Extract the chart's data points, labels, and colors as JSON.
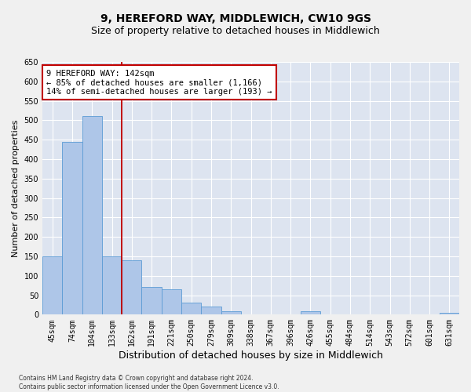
{
  "title1": "9, HEREFORD WAY, MIDDLEWICH, CW10 9GS",
  "title2": "Size of property relative to detached houses in Middlewich",
  "xlabel": "Distribution of detached houses by size in Middlewich",
  "ylabel": "Number of detached properties",
  "footnote": "Contains HM Land Registry data © Crown copyright and database right 2024.\nContains public sector information licensed under the Open Government Licence v3.0.",
  "categories": [
    "45sqm",
    "74sqm",
    "104sqm",
    "133sqm",
    "162sqm",
    "191sqm",
    "221sqm",
    "250sqm",
    "279sqm",
    "309sqm",
    "338sqm",
    "367sqm",
    "396sqm",
    "426sqm",
    "455sqm",
    "484sqm",
    "514sqm",
    "543sqm",
    "572sqm",
    "601sqm",
    "631sqm"
  ],
  "values": [
    150,
    445,
    510,
    150,
    140,
    72,
    65,
    30,
    20,
    8,
    0,
    0,
    0,
    8,
    0,
    0,
    0,
    0,
    0,
    0,
    5
  ],
  "bar_color": "#aec6e8",
  "bar_edge_color": "#5b9bd5",
  "vline_x_index": 3,
  "vline_color": "#c00000",
  "annotation_text": "9 HEREFORD WAY: 142sqm\n← 85% of detached houses are smaller (1,166)\n14% of semi-detached houses are larger (193) →",
  "annotation_box_color": "#ffffff",
  "annotation_box_edge_color": "#c00000",
  "ylim": [
    0,
    650
  ],
  "yticks": [
    0,
    50,
    100,
    150,
    200,
    250,
    300,
    350,
    400,
    450,
    500,
    550,
    600,
    650
  ],
  "background_color": "#dde4f0",
  "grid_color": "#ffffff",
  "title1_fontsize": 10,
  "title2_fontsize": 9,
  "xlabel_fontsize": 9,
  "ylabel_fontsize": 8,
  "tick_fontsize": 7,
  "annotation_fontsize": 7.5,
  "footnote_fontsize": 5.5
}
